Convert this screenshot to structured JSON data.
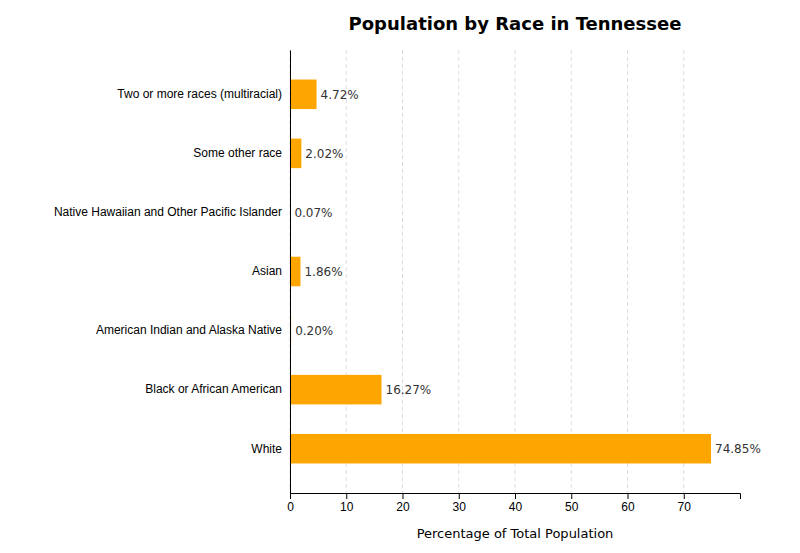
{
  "chart_data": {
    "type": "bar",
    "orientation": "horizontal",
    "title": "Population by Race in Tennessee",
    "xlabel": "Percentage of Total Population",
    "categories": [
      "White",
      "Black or African American",
      "American Indian and Alaska Native",
      "Asian",
      "Native Hawaiian and Other Pacific Islander",
      "Some other race",
      "Two or more races (multiracial)"
    ],
    "values": [
      74.85,
      16.27,
      0.2,
      1.86,
      0.07,
      2.02,
      4.72
    ],
    "value_labels": [
      "74.85%",
      "16.27%",
      "0.20%",
      "1.86%",
      "0.07%",
      "2.02%",
      "4.72%"
    ],
    "data_labels": true,
    "color": "#FFA500",
    "xlim": [
      0,
      80
    ],
    "xticks": [
      0,
      10,
      20,
      30,
      40,
      50,
      60,
      70
    ],
    "grid": true
  }
}
